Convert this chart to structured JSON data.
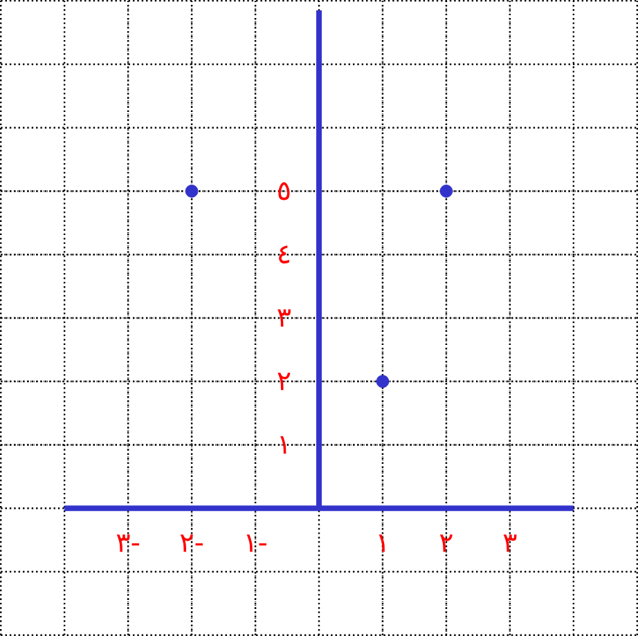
{
  "chart_data": {
    "type": "scatter",
    "color": "#3333cc",
    "grid": true,
    "x": [
      -2,
      2,
      1
    ],
    "values": [
      5,
      5,
      2
    ],
    "xlim": [
      -5,
      5
    ],
    "ylim": [
      -2,
      8
    ],
    "xticks": [
      {
        "value": -3,
        "label": "٣-"
      },
      {
        "value": -2,
        "label": "٢-"
      },
      {
        "value": -1,
        "label": "١-"
      },
      {
        "value": 1,
        "label": "١"
      },
      {
        "value": 2,
        "label": "٢"
      },
      {
        "value": 3,
        "label": "٣"
      }
    ],
    "yticks": [
      {
        "value": 1,
        "label": "١"
      },
      {
        "value": 2,
        "label": "٢"
      },
      {
        "value": 3,
        "label": "٣"
      },
      {
        "value": 4,
        "label": "٤"
      },
      {
        "value": 5,
        "label": "٥"
      }
    ]
  }
}
